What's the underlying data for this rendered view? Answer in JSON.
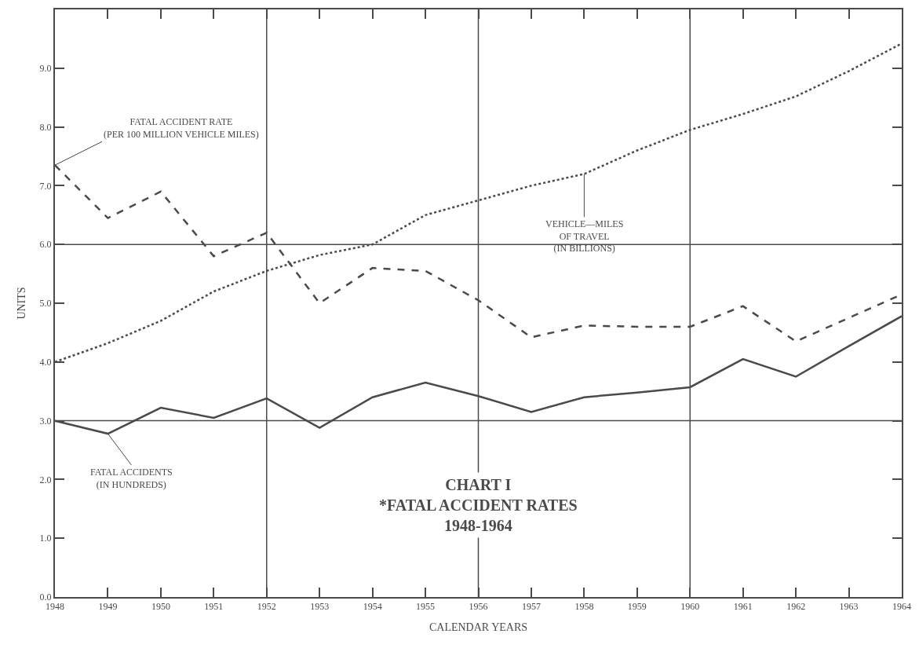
{
  "chart_data": {
    "type": "line",
    "title": "CHART I\n*FATAL ACCIDENT RATES\n1948-1964",
    "xlabel": "CALENDAR YEARS",
    "ylabel": "UNITS",
    "x": [
      1948,
      1949,
      1950,
      1951,
      1952,
      1953,
      1954,
      1955,
      1956,
      1957,
      1958,
      1959,
      1960,
      1961,
      1962,
      1963,
      1964
    ],
    "series": [
      {
        "color": "#4a4a4a",
        "line_style": "dashed",
        "values": [
          7.35,
          6.45,
          6.9,
          5.8,
          6.2,
          5.0,
          5.6,
          5.55,
          5.05,
          4.42,
          4.62,
          4.6,
          4.6,
          4.95,
          4.35,
          4.75,
          5.15
        ]
      },
      {
        "color": "#4a4a4a",
        "line_style": "solid",
        "values": [
          3.0,
          2.78,
          3.22,
          3.05,
          3.38,
          2.88,
          3.4,
          3.65,
          3.42,
          3.15,
          3.4,
          3.48,
          3.57,
          4.05,
          3.75,
          4.27,
          4.78
        ]
      },
      {
        "color": "#4a4a4a",
        "line_style": "dotted",
        "values": [
          4.0,
          4.32,
          4.7,
          5.2,
          5.55,
          5.82,
          6.0,
          6.5,
          6.75,
          7.0,
          7.2,
          7.6,
          7.95,
          8.22,
          8.52,
          8.95,
          9.42
        ]
      }
    ],
    "annotations": [
      {
        "text": "FATAL ACCIDENT RATE\n(PER 100 MILLION VEHICLE MILES)",
        "x": 1948,
        "y": 7.35
      },
      {
        "text": "VEHICLE—MILES\nOF TRAVEL\n(IN BILLIONS)",
        "x": 1958,
        "y": 7.2
      },
      {
        "text": "FATAL ACCIDENTS\n(IN HUNDREDS)",
        "x": 1949,
        "y": 2.78
      }
    ],
    "xlim": [
      1948,
      1964
    ],
    "xticks": [
      1948,
      1949,
      1950,
      1951,
      1952,
      1953,
      1954,
      1955,
      1956,
      1957,
      1958,
      1959,
      1960,
      1961,
      1962,
      1963,
      1964
    ],
    "ylim": [
      0,
      10
    ],
    "yticks": [
      {
        "value": 0,
        "label": "0.0"
      },
      {
        "value": 1,
        "label": "1.0"
      },
      {
        "value": 2,
        "label": "2.0"
      },
      {
        "value": 3,
        "label": "3.0"
      },
      {
        "value": 4,
        "label": "4.0"
      },
      {
        "value": 5,
        "label": "5.0"
      },
      {
        "value": 6,
        "label": "6.0"
      },
      {
        "value": 7,
        "label": "7.0"
      },
      {
        "value": 8,
        "label": "8.0"
      },
      {
        "value": 9,
        "label": "9.0"
      }
    ],
    "ref_lines": [
      {
        "axis": "x",
        "value": 1952
      },
      {
        "axis": "x",
        "value": 1956
      },
      {
        "axis": "x",
        "value": 1960
      },
      {
        "axis": "y",
        "value": 3
      },
      {
        "axis": "y",
        "value": 6
      }
    ],
    "marker": "none"
  }
}
